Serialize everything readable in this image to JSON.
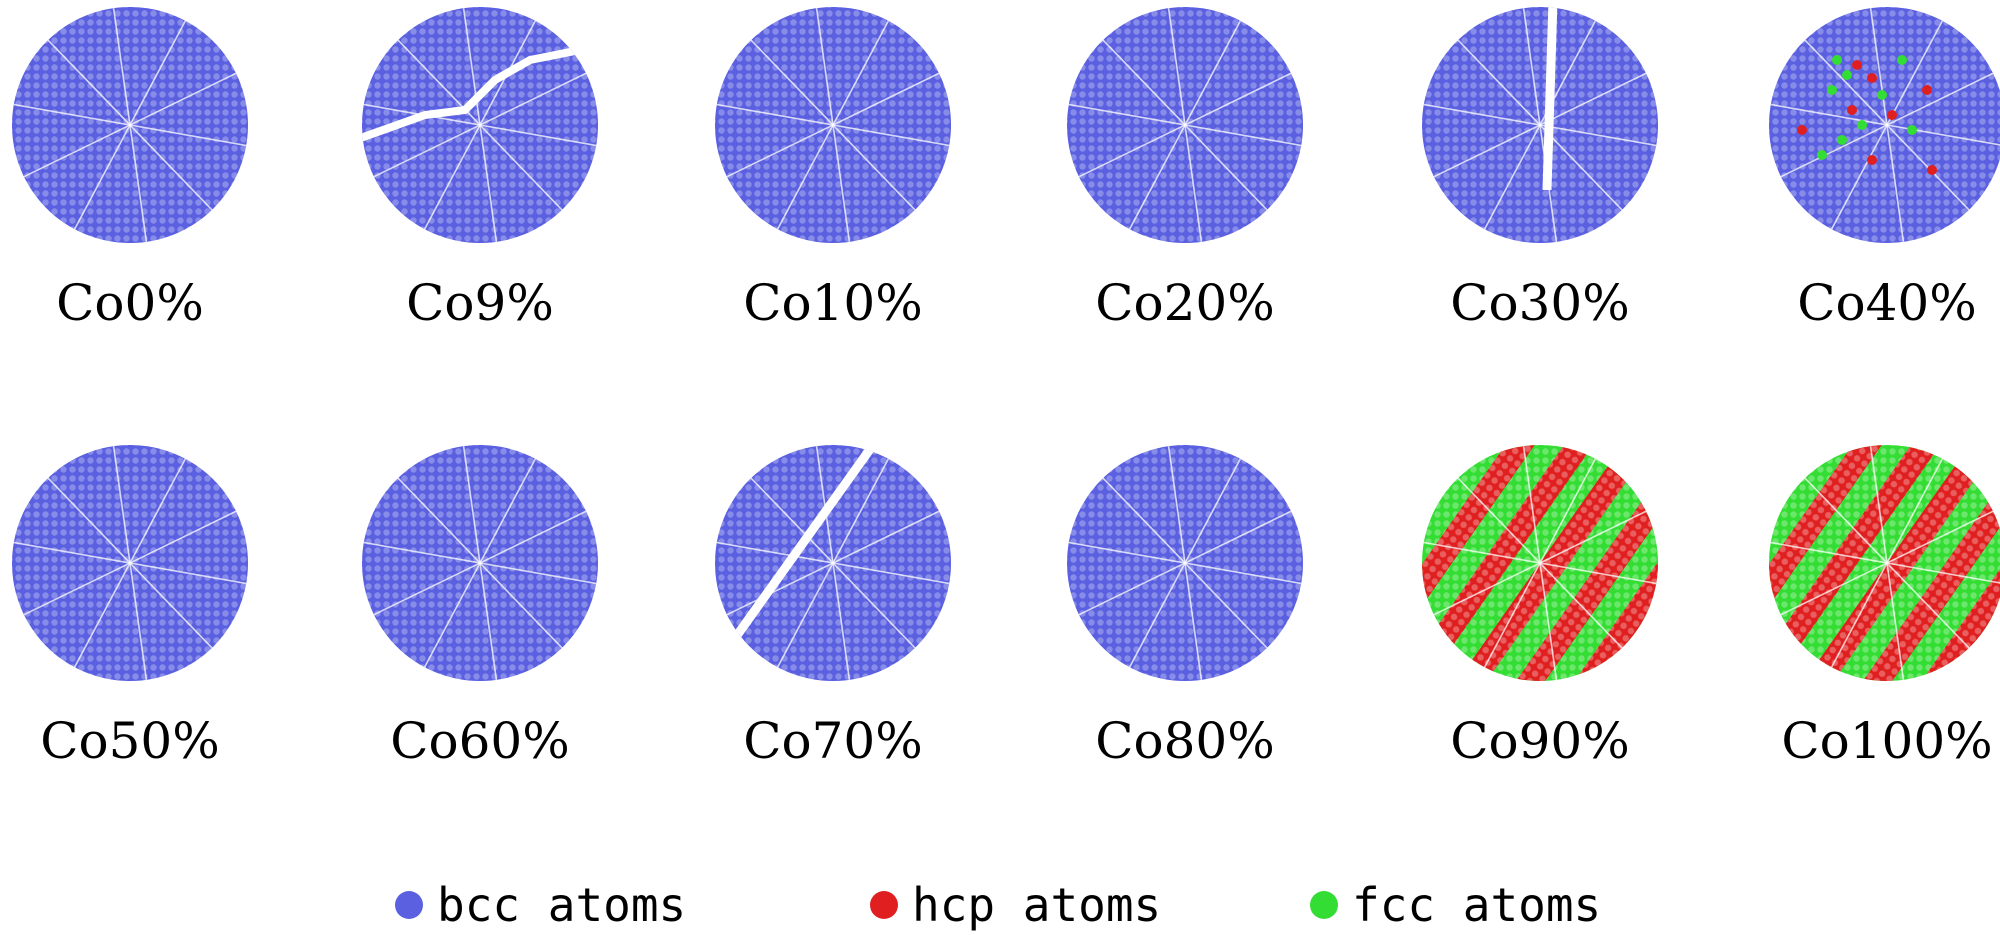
{
  "panels": [
    {
      "label": "Co0%",
      "style": "bcc"
    },
    {
      "label": "Co9%",
      "style": "bcc-crack"
    },
    {
      "label": "Co10%",
      "style": "bcc"
    },
    {
      "label": "Co20%",
      "style": "bcc"
    },
    {
      "label": "Co30%",
      "style": "bcc-slit"
    },
    {
      "label": "Co40%",
      "style": "bcc-mixed"
    },
    {
      "label": "Co50%",
      "style": "bcc"
    },
    {
      "label": "Co60%",
      "style": "bcc"
    },
    {
      "label": "Co70%",
      "style": "bcc-split"
    },
    {
      "label": "Co80%",
      "style": "bcc"
    },
    {
      "label": "Co90%",
      "style": "striped"
    },
    {
      "label": "Co100%",
      "style": "striped"
    }
  ],
  "legend": [
    {
      "label": "bcc atoms",
      "color": "#5a60e0"
    },
    {
      "label": "hcp atoms",
      "color": "#e02020"
    },
    {
      "label": "fcc atoms",
      "color": "#33dd33"
    }
  ]
}
